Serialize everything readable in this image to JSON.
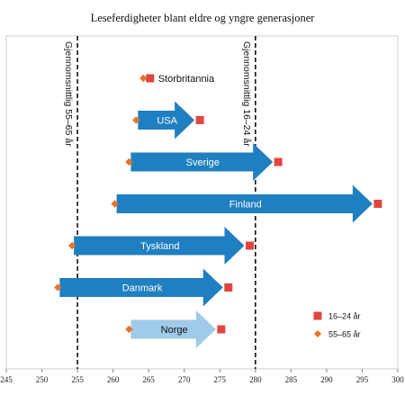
{
  "chart_data": {
    "type": "arrow-range",
    "title": "Leseferdigheter blant eldre og yngre generasjoner",
    "xlim": [
      245,
      300
    ],
    "xticks": [
      245,
      250,
      255,
      260,
      265,
      270,
      275,
      280,
      285,
      290,
      295,
      300
    ],
    "grid": false,
    "legend_position": "bottom-right",
    "series_names": [
      "16–24 år",
      "55–65 år"
    ],
    "reference_lines": [
      {
        "label": "Gjennomsnittlig 55–65 år",
        "value": 255
      },
      {
        "label": "Gjennomsnittlig 16–24 år",
        "value": 280
      }
    ],
    "countries": [
      {
        "name": "Storbritannia",
        "age_55_65": 264.5,
        "age_16_24": 265.2,
        "highlight": false
      },
      {
        "name": "USA",
        "age_55_65": 263.5,
        "age_16_24": 272.2,
        "highlight": false
      },
      {
        "name": "Sverige",
        "age_55_65": 262.5,
        "age_16_24": 283.2,
        "highlight": false
      },
      {
        "name": "Finland",
        "age_55_65": 260.5,
        "age_16_24": 297.2,
        "highlight": false
      },
      {
        "name": "Tyskland",
        "age_55_65": 254.5,
        "age_16_24": 279.2,
        "highlight": false
      },
      {
        "name": "Danmark",
        "age_55_65": 252.5,
        "age_16_24": 276.2,
        "highlight": false
      },
      {
        "name": "Norge",
        "age_55_65": 262.5,
        "age_16_24": 275.2,
        "highlight": true
      }
    ],
    "colors": {
      "arrow": "#1f7fc1",
      "arrow_highlight": "#9fcbe8",
      "square": "#e0463f",
      "diamond": "#e8732a"
    }
  }
}
